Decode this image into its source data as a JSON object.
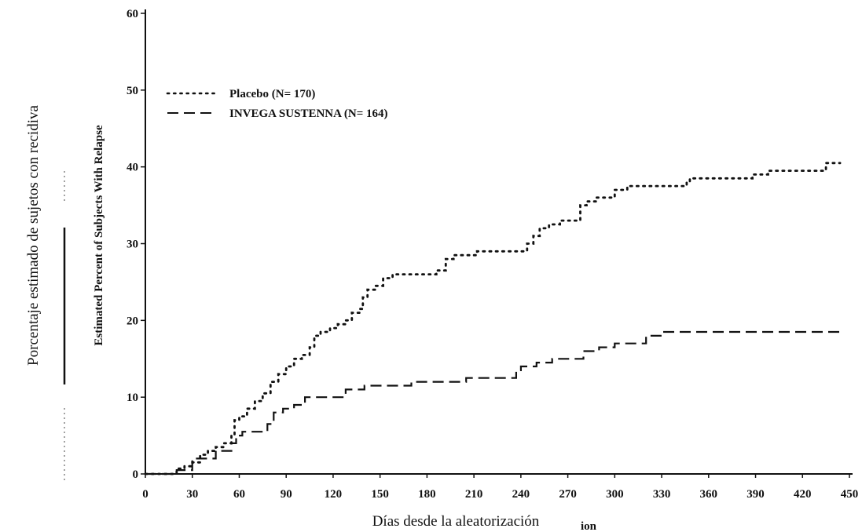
{
  "chart_data": {
    "type": "line",
    "title": "",
    "xlabel": "Días desde la aleatorización",
    "xlabel_fragment": "ion",
    "ylabel": "Porcentaje estimado de sujetos con recidiva",
    "ylabel_english": "Estimated Percent of Subjects With Relapse",
    "xlim": [
      0,
      450
    ],
    "ylim": [
      0,
      60
    ],
    "x_ticks": [
      "0",
      "30",
      "60",
      "90",
      "120",
      "150",
      "180",
      "210",
      "240",
      "270",
      "300",
      "330",
      "360",
      "390",
      "420",
      "450"
    ],
    "y_ticks": [
      "0",
      "10",
      "20",
      "30",
      "40",
      "50",
      "60"
    ],
    "grid": false,
    "legend_position": "top-left",
    "series": [
      {
        "name": "Placebo (N= 170)",
        "style": "dotted",
        "color": "#111111",
        "x": [
          0,
          15,
          20,
          25,
          30,
          35,
          40,
          45,
          50,
          55,
          57,
          60,
          65,
          70,
          75,
          80,
          85,
          90,
          95,
          100,
          105,
          108,
          112,
          118,
          123,
          128,
          132,
          137,
          139,
          142,
          147,
          152,
          158,
          165,
          172,
          180,
          186,
          192,
          197,
          202,
          212,
          222,
          232,
          240,
          244,
          248,
          252,
          258,
          265,
          270,
          278,
          282,
          288,
          295,
          300,
          308,
          315,
          322,
          332,
          346,
          348,
          356,
          370,
          385,
          388,
          398,
          412,
          430,
          435,
          444
        ],
        "y": [
          0,
          0,
          0.7,
          1,
          1.5,
          2.5,
          3,
          3.5,
          4,
          5,
          7,
          7.5,
          8.5,
          9.5,
          10.5,
          12,
          13,
          14,
          15,
          15.5,
          16.5,
          18,
          18.5,
          19,
          19.5,
          20,
          21,
          21.5,
          23,
          24,
          24.5,
          25.5,
          26,
          26,
          26,
          26,
          26.5,
          28,
          28.5,
          28.5,
          29,
          29,
          29,
          29,
          30,
          31,
          32,
          32.5,
          33,
          33,
          35,
          35.5,
          36,
          36,
          37,
          37.5,
          37.5,
          37.5,
          37.5,
          38,
          38.5,
          38.5,
          38.5,
          38.5,
          39,
          39.5,
          39.5,
          39.5,
          40.5,
          40.5
        ]
      },
      {
        "name": "INVEGA SUSTENNA (N= 164)",
        "style": "dashed",
        "color": "#111111",
        "x": [
          0,
          20,
          30,
          35,
          45,
          55,
          58,
          62,
          70,
          78,
          82,
          88,
          95,
          102,
          108,
          128,
          140,
          148,
          170,
          205,
          230,
          237,
          240,
          250,
          260,
          280,
          290,
          300,
          320,
          330,
          445
        ],
        "y": [
          0,
          0.5,
          2,
          2,
          3,
          4,
          5,
          5.5,
          5.5,
          6.5,
          8,
          8.5,
          9,
          10,
          10,
          11,
          11.5,
          11.5,
          12,
          12.5,
          12.5,
          13.5,
          14,
          14.5,
          15,
          16,
          16.5,
          17,
          18,
          18.5,
          18.5
        ]
      }
    ]
  }
}
